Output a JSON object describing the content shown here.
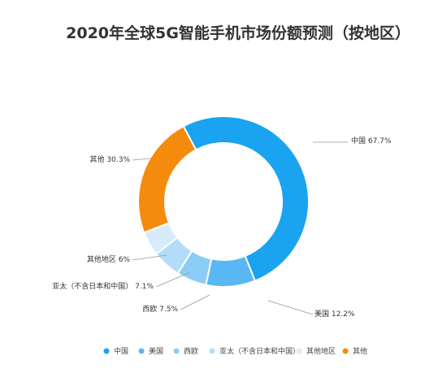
{
  "chart_data": {
    "type": "pie",
    "title": "2020年全球5G智能手机市场份额预测（按地区）",
    "categories": [
      "中国",
      "美国",
      "西欧",
      "亚太（不含日本和中国）",
      "其他地区",
      "其他"
    ],
    "slice_labels": [
      "中国 67.7%",
      "美国 12.2%",
      "西欧 7.5%",
      "亚太（不含日本和中国） 7.1%",
      "其他地区 6%",
      "其他 30.3%"
    ],
    "values": [
      67.7,
      12.2,
      7.5,
      7.1,
      6,
      30.3
    ],
    "colors": [
      "#1aa3f0",
      "#59b7f3",
      "#8ccdf7",
      "#b3dcf8",
      "#d6ecfb",
      "#f58b0c"
    ],
    "donut": true,
    "legend": {
      "position": "bottom"
    }
  }
}
